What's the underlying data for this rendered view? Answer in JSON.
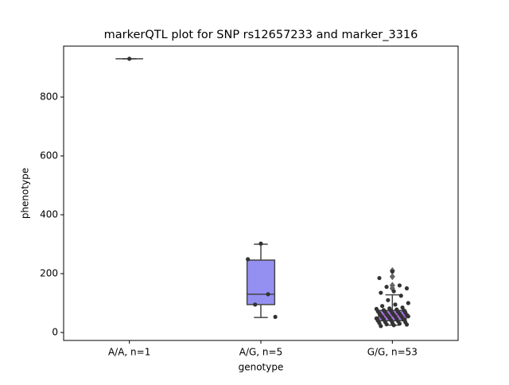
{
  "chart_data": {
    "type": "box",
    "title": "markerQTL plot for SNP rs12657233 and marker_3316",
    "x_label": "genotype",
    "y_label": "phenotype",
    "categories": [
      "A/A, n=1",
      "A/G, n=5",
      "G/G, n=53"
    ],
    "boxes": [
      {
        "q1": 930,
        "median": 930,
        "q3": 930,
        "whisker_low": 930,
        "whisker_high": 930,
        "fliers": [],
        "points": [
          930
        ],
        "color": "#8aa6ee"
      },
      {
        "q1": 95,
        "median": 130,
        "q3": 246,
        "whisker_low": 51,
        "whisker_high": 300,
        "fliers": [],
        "points": [
          302,
          249,
          130,
          95,
          53
        ],
        "color": "#9490f2"
      },
      {
        "q1": 40,
        "median": 58,
        "q3": 75,
        "whisker_low": 25,
        "whisker_high": 128,
        "fliers": [
          210,
          190,
          160,
          150
        ],
        "points": [
          207,
          185,
          160,
          155,
          150,
          140,
          135,
          125,
          110,
          100,
          95,
          90,
          85,
          82,
          80,
          78,
          76,
          75,
          74,
          72,
          70,
          70,
          68,
          66,
          65,
          64,
          62,
          60,
          60,
          58,
          57,
          56,
          55,
          54,
          52,
          50,
          50,
          48,
          46,
          45,
          44,
          42,
          40,
          38,
          36,
          35,
          33,
          32,
          30,
          28,
          27,
          25,
          22
        ],
        "color": "#a678e6"
      }
    ],
    "ylim": [
      -27,
      973
    ],
    "yticks": [
      0,
      200,
      400,
      600,
      800
    ],
    "median_color": "#c64fd6",
    "point_color": "#333333",
    "flier_color": "#666666"
  }
}
